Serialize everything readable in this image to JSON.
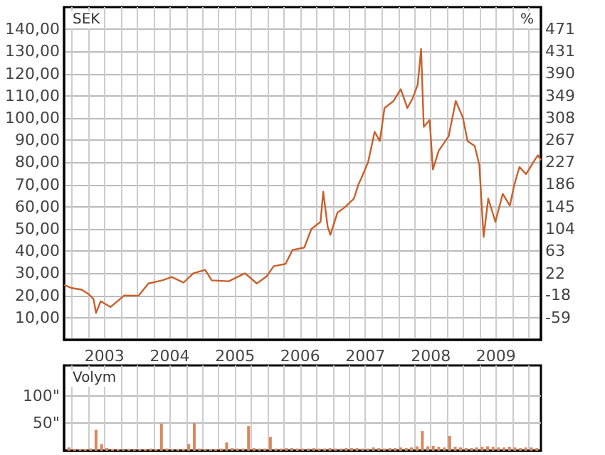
{
  "chart_data": [
    {
      "type": "line",
      "ylabel": "SEK",
      "y2label": "%",
      "x": [
        "2002-11-18",
        "2003-01-01",
        "2003-02-24",
        "2003-04-05",
        "2003-05-01",
        "2003-05-15",
        "2003-06-10",
        "2003-08-04",
        "2003-10-20",
        "2004-01-08",
        "2004-03-03",
        "2004-05-19",
        "2004-07-12",
        "2004-09-16",
        "2004-11-10",
        "2005-01-15",
        "2005-02-21",
        "2005-05-27",
        "2005-08-26",
        "2005-10-31",
        "2005-12-24",
        "2006-02-03",
        "2006-04-10",
        "2006-05-19",
        "2006-07-24",
        "2006-09-02",
        "2006-10-23",
        "2006-11-07",
        "2006-12-02",
        "2006-12-17",
        "2007-01-26",
        "2007-03-04",
        "2007-04-28",
        "2007-05-23",
        "2007-06-07",
        "2007-07-16",
        "2007-08-22",
        "2007-09-20",
        "2007-10-16",
        "2007-12-06",
        "2008-01-15",
        "2008-02-21",
        "2008-03-21",
        "2008-04-19",
        "2008-05-08",
        "2008-05-23",
        "2008-06-25",
        "2008-07-13",
        "2008-08-15",
        "2008-10-09",
        "2008-11-18",
        "2008-12-28",
        "2009-01-23",
        "2009-03-04",
        "2009-03-30",
        "2009-04-23",
        "2009-05-19",
        "2009-06-28",
        "2009-08-08",
        "2009-09-17",
        "2009-10-12",
        "2009-11-10",
        "2009-12-17",
        "2010-01-26",
        "2010-02-21",
        "2010-03-10"
      ],
      "series": [
        {
          "color": "#c8602a",
          "values": [
            24.7,
            23.3,
            22.6,
            20.5,
            18.4,
            12.1,
            17.4,
            14.8,
            20,
            19.9,
            25.4,
            26.8,
            28.3,
            25.8,
            30,
            31.5,
            26.8,
            26.4,
            30,
            25.4,
            28.5,
            33.2,
            34.2,
            40.5,
            41.6,
            50,
            53.2,
            66.8,
            51,
            47.3,
            57.4,
            59.5,
            63.7,
            70,
            72.6,
            80,
            93.8,
            89.6,
            104.5,
            107.7,
            113,
            104.5,
            108.7,
            115.1,
            131.1,
            96,
            99.1,
            76.8,
            85.3,
            91.7,
            107.7,
            100.2,
            89.6,
            87.4,
            78.9,
            46.4,
            63.7,
            53.2,
            65.8,
            60.5,
            70,
            77.9,
            74.7,
            80,
            83.2,
            81
          ]
        }
      ],
      "xlim": [
        "2002-11-17",
        "2010-03-10"
      ],
      "xticks": [
        {
          "value": "2003-01-01",
          "label": null
        },
        {
          "value": "2003-04-01",
          "label": null
        },
        {
          "value": "2003-07-01",
          "label": "2003"
        },
        {
          "value": "2003-10-01",
          "label": null
        },
        {
          "value": "2004-01-01",
          "label": null
        },
        {
          "value": "2004-04-01",
          "label": null
        },
        {
          "value": "2004-07-01",
          "label": "2004"
        },
        {
          "value": "2004-10-01",
          "label": null
        },
        {
          "value": "2005-01-01",
          "label": null
        },
        {
          "value": "2005-04-01",
          "label": null
        },
        {
          "value": "2005-07-01",
          "label": "2005"
        },
        {
          "value": "2005-10-01",
          "label": null
        },
        {
          "value": "2006-01-01",
          "label": null
        },
        {
          "value": "2006-04-01",
          "label": null
        },
        {
          "value": "2006-07-01",
          "label": "2006"
        },
        {
          "value": "2006-10-01",
          "label": null
        },
        {
          "value": "2007-01-01",
          "label": null
        },
        {
          "value": "2007-04-01",
          "label": null
        },
        {
          "value": "2007-07-01",
          "label": "2007"
        },
        {
          "value": "2007-10-01",
          "label": null
        },
        {
          "value": "2008-01-01",
          "label": null
        },
        {
          "value": "2008-04-01",
          "label": null
        },
        {
          "value": "2008-07-01",
          "label": "2008"
        },
        {
          "value": "2008-10-01",
          "label": null
        },
        {
          "value": "2009-01-01",
          "label": null
        },
        {
          "value": "2009-04-01",
          "label": null
        },
        {
          "value": "2009-07-01",
          "label": "2009"
        },
        {
          "value": "2009-10-01",
          "label": null
        },
        {
          "value": "2010-01-01",
          "label": null
        }
      ],
      "ylim": [
        0,
        150
      ],
      "yticks": [
        {
          "value": 10,
          "label": "10,00"
        },
        {
          "value": 20,
          "label": "20,00"
        },
        {
          "value": 30,
          "label": "30,00"
        },
        {
          "value": 40,
          "label": "40,00"
        },
        {
          "value": 50,
          "label": "50,00"
        },
        {
          "value": 60,
          "label": "60,00"
        },
        {
          "value": 70,
          "label": "70,00"
        },
        {
          "value": 80,
          "label": "80,00"
        },
        {
          "value": 90,
          "label": "90,00"
        },
        {
          "value": 100,
          "label": "100,00"
        },
        {
          "value": 110,
          "label": "110,00"
        },
        {
          "value": 120,
          "label": "120,00"
        },
        {
          "value": 130,
          "label": "130,00"
        },
        {
          "value": 140,
          "label": "140,00"
        }
      ],
      "y2lim": [
        -100,
        512
      ],
      "y2ticks": [
        -59,
        -18,
        22,
        63,
        104,
        145,
        186,
        227,
        267,
        308,
        349,
        390,
        431,
        471
      ],
      "grid": true,
      "marker": "none",
      "line_style": "solid"
    },
    {
      "type": "bar",
      "title": "Volym",
      "x": [
        "2002-12-15",
        "2003-01-15",
        "2003-02-15",
        "2003-03-15",
        "2003-04-15",
        "2003-05-15",
        "2003-06-15",
        "2003-07-15",
        "2003-08-15",
        "2003-09-15",
        "2003-10-15",
        "2003-11-15",
        "2003-12-15",
        "2004-01-15",
        "2004-02-15",
        "2004-03-15",
        "2004-04-15",
        "2004-05-15",
        "2004-06-15",
        "2004-07-15",
        "2004-08-15",
        "2004-09-15",
        "2004-10-15",
        "2004-11-15",
        "2004-12-15",
        "2005-01-15",
        "2005-02-15",
        "2005-03-15",
        "2005-04-15",
        "2005-05-15",
        "2005-06-15",
        "2005-07-15",
        "2005-08-15",
        "2005-09-15",
        "2005-10-15",
        "2005-11-15",
        "2005-12-15",
        "2006-01-15",
        "2006-02-15",
        "2006-03-15",
        "2006-04-15",
        "2006-05-15",
        "2006-06-15",
        "2006-07-15",
        "2006-08-15",
        "2006-09-15",
        "2006-10-15",
        "2006-11-15",
        "2006-12-15",
        "2007-01-15",
        "2007-02-15",
        "2007-03-15",
        "2007-04-15",
        "2007-05-15",
        "2007-06-15",
        "2007-07-15",
        "2007-08-15",
        "2007-09-15",
        "2007-10-15",
        "2007-11-15",
        "2007-12-15",
        "2008-01-15",
        "2008-02-15",
        "2008-03-15",
        "2008-04-15",
        "2008-05-15",
        "2008-06-15",
        "2008-07-15",
        "2008-08-15",
        "2008-09-15",
        "2008-10-15",
        "2008-11-15",
        "2008-12-15",
        "2009-01-15",
        "2009-02-15",
        "2009-03-15",
        "2009-04-15",
        "2009-05-15",
        "2009-06-15",
        "2009-07-15",
        "2009-08-15",
        "2009-09-15",
        "2009-10-15",
        "2009-11-15",
        "2009-12-15",
        "2010-01-15",
        "2010-02-15"
      ],
      "series": [
        {
          "color": "#d9875c",
          "values": [
            6,
            3,
            3,
            3,
            4,
            38,
            12,
            5,
            3,
            3,
            2,
            3,
            2,
            3,
            3,
            4,
            3,
            49,
            4,
            3,
            3,
            3,
            12,
            50,
            4,
            3,
            3,
            3,
            4,
            15,
            5,
            4,
            4,
            45,
            5,
            4,
            4,
            25,
            4,
            4,
            5,
            5,
            4,
            4,
            4,
            5,
            4,
            4,
            5,
            4,
            4,
            5,
            5,
            5,
            4,
            4,
            6,
            5,
            4,
            5,
            5,
            6,
            5,
            6,
            8,
            36,
            8,
            9,
            7,
            6,
            27,
            7,
            6,
            5,
            5,
            6,
            7,
            8,
            7,
            6,
            6,
            7,
            6,
            5,
            6,
            6,
            5
          ]
        }
      ],
      "xlim": [
        "2002-11-17",
        "2010-03-10"
      ],
      "xticks": [
        {
          "value": "2003-01-01",
          "label": null
        },
        {
          "value": "2003-04-01",
          "label": null
        },
        {
          "value": "2003-07-01",
          "label": null
        },
        {
          "value": "2003-10-01",
          "label": null
        },
        {
          "value": "2004-01-01",
          "label": null
        },
        {
          "value": "2004-04-01",
          "label": null
        },
        {
          "value": "2004-07-01",
          "label": null
        },
        {
          "value": "2004-10-01",
          "label": null
        },
        {
          "value": "2005-01-01",
          "label": null
        },
        {
          "value": "2005-04-01",
          "label": null
        },
        {
          "value": "2005-07-01",
          "label": null
        },
        {
          "value": "2005-10-01",
          "label": null
        },
        {
          "value": "2006-01-01",
          "label": null
        },
        {
          "value": "2006-04-01",
          "label": null
        },
        {
          "value": "2006-07-01",
          "label": null
        },
        {
          "value": "2006-10-01",
          "label": null
        },
        {
          "value": "2007-01-01",
          "label": null
        },
        {
          "value": "2007-04-01",
          "label": null
        },
        {
          "value": "2007-07-01",
          "label": null
        },
        {
          "value": "2007-10-01",
          "label": null
        },
        {
          "value": "2008-01-01",
          "label": null
        },
        {
          "value": "2008-04-01",
          "label": null
        },
        {
          "value": "2008-07-01",
          "label": null
        },
        {
          "value": "2008-10-01",
          "label": null
        },
        {
          "value": "2009-01-01",
          "label": null
        },
        {
          "value": "2009-04-01",
          "label": null
        },
        {
          "value": "2009-07-01",
          "label": null
        },
        {
          "value": "2009-10-01",
          "label": null
        },
        {
          "value": "2010-01-01",
          "label": null
        }
      ],
      "ylim": [
        0,
        155
      ],
      "yticks": [
        {
          "value": 50,
          "label": "50\""
        },
        {
          "value": 100,
          "label": "100\""
        }
      ],
      "grid": true,
      "tick_labels": "y"
    }
  ]
}
